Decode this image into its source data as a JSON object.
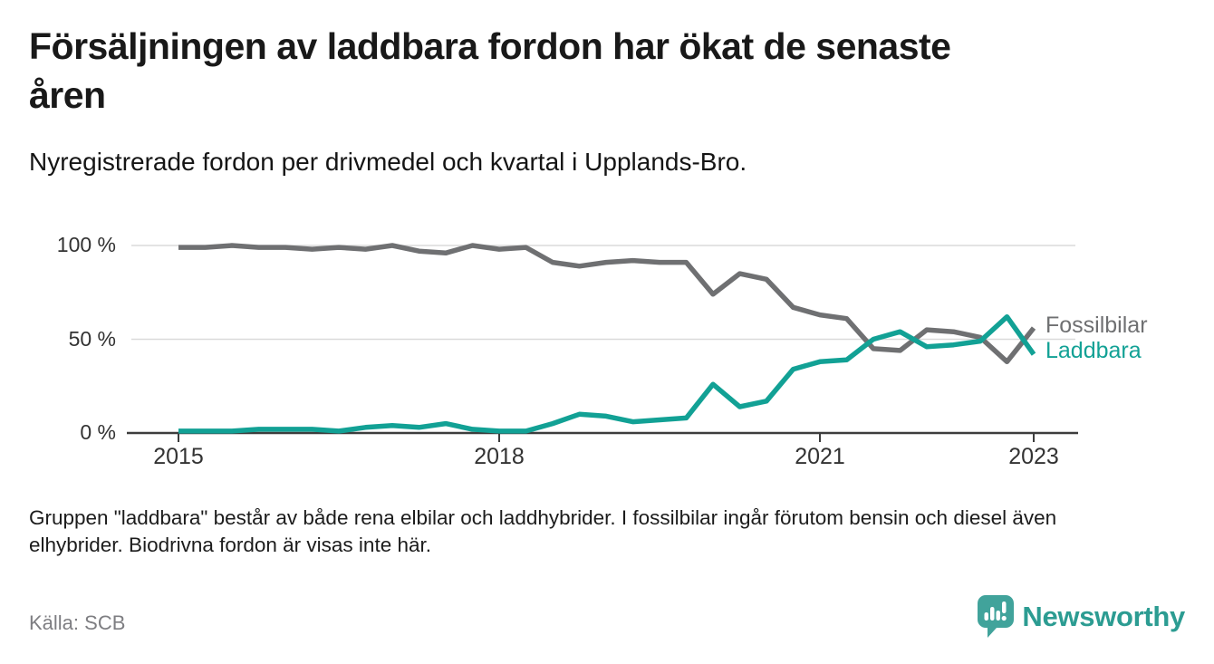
{
  "header": {
    "title_lines": [
      "Försäljningen av laddbara fordon har ökat de senaste",
      "åren"
    ],
    "subtitle": "Nyregistrerade fordon per drivmedel och kvartal i Upplands-Bro."
  },
  "chart_data": {
    "type": "line",
    "title": "Nyregistrerade fordon per drivmedel och kvartal i Upplands-Bro",
    "x_unit": "quarter",
    "x": [
      "2015 Q1",
      "2015 Q2",
      "2015 Q3",
      "2015 Q4",
      "2016 Q1",
      "2016 Q2",
      "2016 Q3",
      "2016 Q4",
      "2017 Q1",
      "2017 Q2",
      "2017 Q3",
      "2017 Q4",
      "2018 Q1",
      "2018 Q2",
      "2018 Q3",
      "2018 Q4",
      "2019 Q1",
      "2019 Q2",
      "2019 Q3",
      "2019 Q4",
      "2020 Q1",
      "2020 Q2",
      "2020 Q3",
      "2020 Q4",
      "2021 Q1",
      "2021 Q2",
      "2021 Q3",
      "2021 Q4",
      "2022 Q1",
      "2022 Q2",
      "2022 Q3",
      "2022 Q4",
      "2023 Q1"
    ],
    "series": [
      {
        "name": "Fossilbilar",
        "color": "#6F7072",
        "values": [
          99,
          99,
          100,
          99,
          99,
          98,
          99,
          98,
          100,
          97,
          96,
          100,
          98,
          99,
          91,
          89,
          91,
          92,
          91,
          91,
          74,
          85,
          82,
          67,
          63,
          61,
          45,
          44,
          55,
          54,
          51,
          38,
          56
        ]
      },
      {
        "name": "Laddbara",
        "color": "#12A195",
        "values": [
          1,
          1,
          1,
          2,
          2,
          2,
          1,
          3,
          4,
          3,
          5,
          2,
          1,
          1,
          5,
          10,
          9,
          6,
          7,
          8,
          26,
          14,
          17,
          34,
          38,
          39,
          50,
          54,
          46,
          47,
          49,
          62,
          42
        ]
      }
    ],
    "ylim": [
      0,
      100
    ],
    "y_unit": "%",
    "yticks": [
      {
        "value": 100,
        "label": "100 %"
      },
      {
        "value": 50,
        "label": "50 %"
      },
      {
        "value": 0,
        "label": "0 %"
      }
    ],
    "xticks": [
      {
        "index": 0,
        "label": "2015"
      },
      {
        "index": 12,
        "label": "2018"
      },
      {
        "index": 24,
        "label": "2021"
      },
      {
        "index": 32,
        "label": "2023"
      }
    ],
    "grid": "horizontal",
    "legend_position": "right-of-line-end"
  },
  "footnote_lines": [
    "Gruppen \"laddbara\" består av både rena elbilar och laddhybrider. I fossilbilar ingår förutom bensin och diesel även",
    "elhybrider. Biodrivna fordon är visas inte här."
  ],
  "source": "Källa: SCB",
  "logo": {
    "text": "Newsworthy",
    "color": "#2C9C92",
    "icon": "newsworthy-chart-bubble-icon",
    "icon_color": "#41A39B"
  },
  "colors": {
    "gridline": "#DADADA",
    "axis": "#3D3D3D",
    "tick_text": "#333333"
  }
}
